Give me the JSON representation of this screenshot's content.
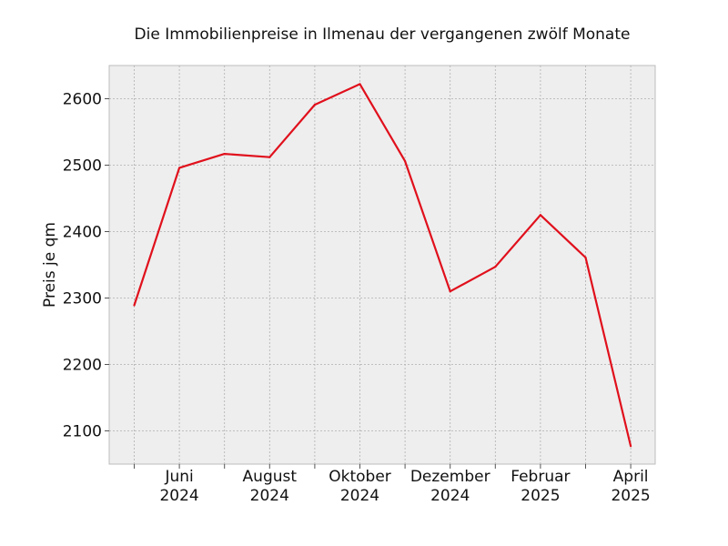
{
  "chart_data": {
    "type": "line",
    "title": "Die Immobilienpreise in Ilmenau der vergangenen zwölf Monate",
    "xlabel": "",
    "ylabel": "Preis je qm",
    "x": [
      "2024-05",
      "2024-06",
      "2024-07",
      "2024-08",
      "2024-09",
      "2024-10",
      "2024-11",
      "2024-12",
      "2025-01",
      "2025-02",
      "2025-03",
      "2025-04"
    ],
    "x_tick_labels": [
      {
        "x": "2024-06",
        "line1": "Juni",
        "line2": "2024"
      },
      {
        "x": "2024-08",
        "line1": "August",
        "line2": "2024"
      },
      {
        "x": "2024-10",
        "line1": "Oktober",
        "line2": "2024"
      },
      {
        "x": "2024-12",
        "line1": "Dezember",
        "line2": "2024"
      },
      {
        "x": "2025-02",
        "line1": "Februar",
        "line2": "2025"
      },
      {
        "x": "2025-04",
        "line1": "April",
        "line2": "2025"
      }
    ],
    "y_ticks": [
      2100,
      2200,
      2300,
      2400,
      2500,
      2600
    ],
    "ylim": [
      2050,
      2650
    ],
    "series": [
      {
        "values": [
          2289,
          2496,
          2517,
          2512,
          2591,
          2622,
          2506,
          2310,
          2347,
          2425,
          2361,
          2077
        ],
        "color": "#e0101c"
      }
    ],
    "grid": true,
    "background": "#eeeeee"
  }
}
